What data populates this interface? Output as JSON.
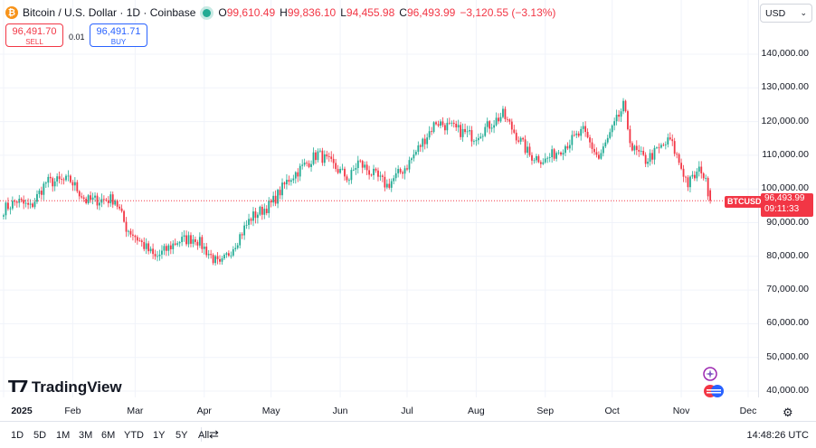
{
  "header": {
    "symbol_title": "Bitcoin / U.S. Dollar · 1D · Coinbase",
    "ohlc": [
      {
        "k": "O",
        "v": "99,610.49"
      },
      {
        "k": "H",
        "v": "99,836.10"
      },
      {
        "k": "L",
        "v": "94,455.98"
      },
      {
        "k": "C",
        "v": "96,493.99"
      }
    ],
    "change": "−3,120.55 (−3.13%)"
  },
  "trade": {
    "sell_price": "96,491.70",
    "sell_label": "SELL",
    "buy_price": "96,491.71",
    "buy_label": "BUY",
    "spread": "0.01"
  },
  "currency": {
    "label": "USD"
  },
  "price_axis": {
    "labels": [
      "140,000.00",
      "130,000.00",
      "120,000.00",
      "110,000.00",
      "100,000.00",
      "90,000.00",
      "80,000.00",
      "70,000.00",
      "60,000.00",
      "50,000.00",
      "40,000.00"
    ]
  },
  "last_price": {
    "symbol": "BTCUSD",
    "value": "96,493.99",
    "countdown": "09:11:33"
  },
  "time_axis": {
    "labels": [
      "2025",
      "Feb",
      "Mar",
      "Apr",
      "May",
      "Jun",
      "Jul",
      "Aug",
      "Sep",
      "Oct",
      "Nov",
      "Dec"
    ]
  },
  "ranges": [
    "1D",
    "5D",
    "1M",
    "3M",
    "6M",
    "YTD",
    "1Y",
    "5Y",
    "All"
  ],
  "clock": "14:48:26 UTC",
  "logo": {
    "text": "TradingView"
  },
  "colors": {
    "up": "#22ab94",
    "down": "#f23645",
    "accent": "#2962ff",
    "coin": "#f7931a"
  },
  "chart_data": {
    "type": "candlestick",
    "interval": "1D",
    "y_range": [
      40000,
      140000
    ],
    "x_range": [
      "2025-01-01",
      "2025-12-01"
    ],
    "anchors": [
      {
        "date": "2025-01-01",
        "close": 94000
      },
      {
        "date": "2025-01-07",
        "close": 96500
      },
      {
        "date": "2025-01-13",
        "close": 94500
      },
      {
        "date": "2025-01-20",
        "close": 102000
      },
      {
        "date": "2025-01-31",
        "close": 102500
      },
      {
        "date": "2025-02-07",
        "close": 96500
      },
      {
        "date": "2025-02-20",
        "close": 97000
      },
      {
        "date": "2025-02-25",
        "close": 88500
      },
      {
        "date": "2025-03-01",
        "close": 86000
      },
      {
        "date": "2025-03-10",
        "close": 79500
      },
      {
        "date": "2025-03-20",
        "close": 84500
      },
      {
        "date": "2025-03-28",
        "close": 85500
      },
      {
        "date": "2025-04-08",
        "close": 77000
      },
      {
        "date": "2025-04-15",
        "close": 84000
      },
      {
        "date": "2025-04-22",
        "close": 91500
      },
      {
        "date": "2025-05-01",
        "close": 95500
      },
      {
        "date": "2025-05-09",
        "close": 103000
      },
      {
        "date": "2025-05-22",
        "close": 110500
      },
      {
        "date": "2025-06-05",
        "close": 103000
      },
      {
        "date": "2025-06-09",
        "close": 108000
      },
      {
        "date": "2025-06-22",
        "close": 101000
      },
      {
        "date": "2025-07-01",
        "close": 107000
      },
      {
        "date": "2025-07-14",
        "close": 120000
      },
      {
        "date": "2025-07-31",
        "close": 115500
      },
      {
        "date": "2025-08-13",
        "close": 122000
      },
      {
        "date": "2025-08-25",
        "close": 110000
      },
      {
        "date": "2025-09-01",
        "close": 108500
      },
      {
        "date": "2025-09-18",
        "close": 117000
      },
      {
        "date": "2025-09-25",
        "close": 109000
      },
      {
        "date": "2025-10-06",
        "close": 124500
      },
      {
        "date": "2025-10-10",
        "close": 112000
      },
      {
        "date": "2025-10-16",
        "close": 108500
      },
      {
        "date": "2025-10-27",
        "close": 114500
      },
      {
        "date": "2025-11-04",
        "close": 101500
      },
      {
        "date": "2025-11-10",
        "close": 106000
      },
      {
        "date": "2025-11-13",
        "close": 99610
      },
      {
        "date": "2025-11-14",
        "close": 96494
      }
    ]
  }
}
